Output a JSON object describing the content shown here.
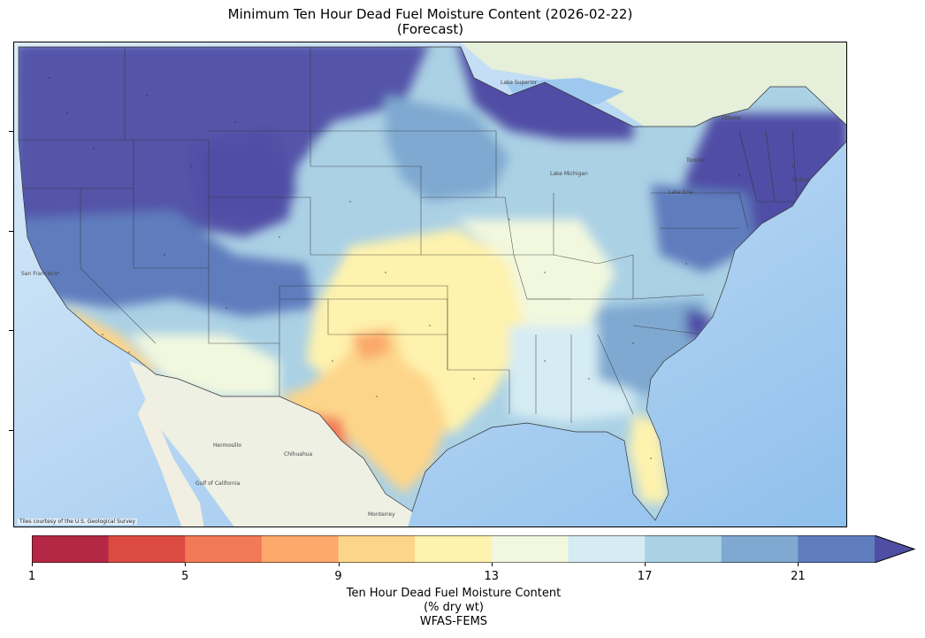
{
  "title_line1": "Minimum Ten Hour Dead Fuel Moisture Content (2026-02-22)",
  "title_line2": "(Forecast)",
  "map": {
    "credit": "Tiles courtesy of the U.S. Geological Survey",
    "colors": {
      "ocean": "#cfe4f7",
      "ocean_deep": "#a9cdf0",
      "land_base": "#e9eedd",
      "lakes": "#9fc8ee",
      "state_lines": "#333333"
    },
    "labels": [
      "Lake Superior",
      "Lake Michigan",
      "Lake Erie",
      "Ottawa",
      "Toronto",
      "Boston",
      "Hermosillo",
      "Chihuahua",
      "Monterrey",
      "Gulf of California",
      "San Francisco"
    ]
  },
  "colorbar": {
    "colors": [
      "#b42845",
      "#dc4b42",
      "#f27a56",
      "#fba86a",
      "#fdd58a",
      "#fef2ae",
      "#f2f8de",
      "#d5ecf4",
      "#abd1e5",
      "#7fa9d0",
      "#5f7dbd",
      "#4f4ea5"
    ],
    "boundaries": [
      1,
      3,
      5,
      7,
      9,
      11,
      13,
      15,
      17,
      19,
      21,
      23
    ],
    "tick_labels": [
      "1",
      "5",
      "9",
      "13",
      "17",
      "21"
    ],
    "extend": "max",
    "label_line1": "Ten Hour Dead Fuel Moisture Content",
    "label_line2": "(% dry wt)",
    "label_line3": "WFAS-FEMS"
  }
}
